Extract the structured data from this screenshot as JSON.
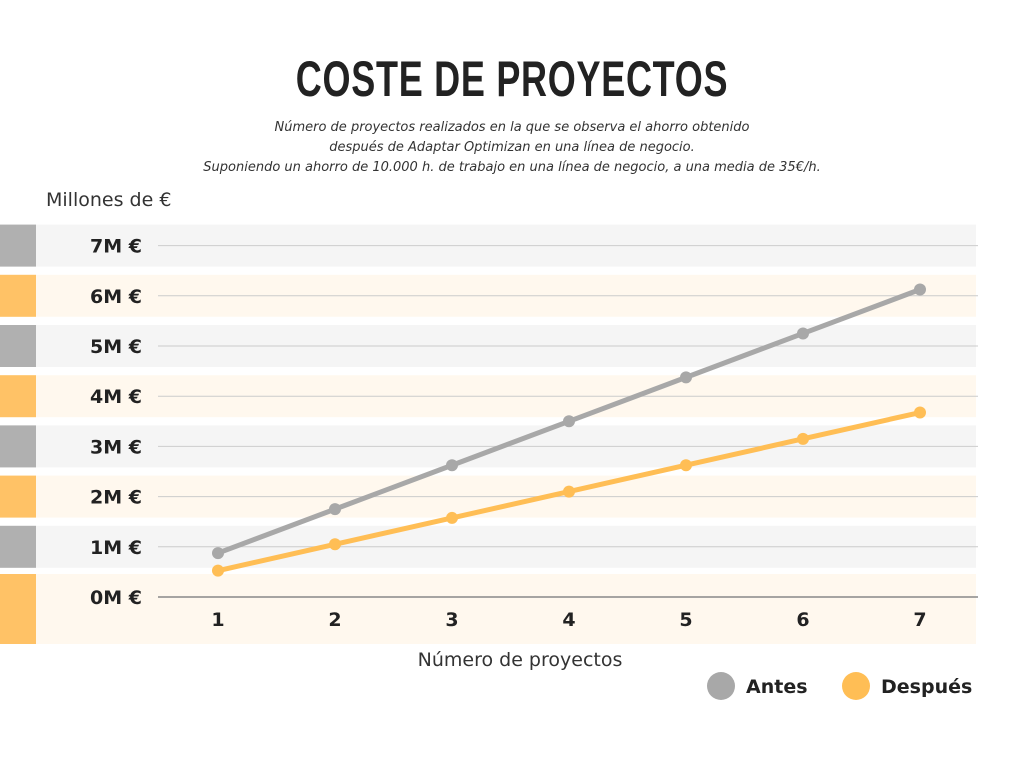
{
  "title": "COSTE DE PROYECTOS",
  "subtitle": [
    "Número de proyectos realizados en la que se observa el ahorro obtenido",
    "después de Adaptar Optimizan en una línea de negocio.",
    "Suponiendo un ahorro de 10.000 h. de trabajo en una línea de negocio, a una media de 35€/h."
  ],
  "chart_data": {
    "type": "line",
    "ylabel": "Millones de €",
    "xlabel": "Número de proyectos",
    "x": [
      1,
      2,
      3,
      4,
      5,
      6,
      7
    ],
    "x_tick_labels": [
      "1",
      "2",
      "3",
      "4",
      "5",
      "6",
      "7"
    ],
    "y_tick_labels": [
      "0M €",
      "1M €",
      "2M €",
      "3M €",
      "4M €",
      "5M €",
      "6M €",
      "7M €"
    ],
    "ylim": [
      0,
      7
    ],
    "grid": true,
    "legend_position": "bottom-right",
    "series": [
      {
        "name": "Antes",
        "color": "#a8a8a8",
        "values": [
          0.875,
          1.75,
          2.625,
          3.5,
          4.375,
          5.25,
          6.125
        ]
      },
      {
        "name": "Después",
        "color": "#ffbe55",
        "values": [
          0.525,
          1.05,
          1.575,
          2.1,
          2.625,
          3.15,
          3.675
        ]
      }
    ],
    "band_colors": [
      "#b0b0b0",
      "#ffc266"
    ]
  }
}
